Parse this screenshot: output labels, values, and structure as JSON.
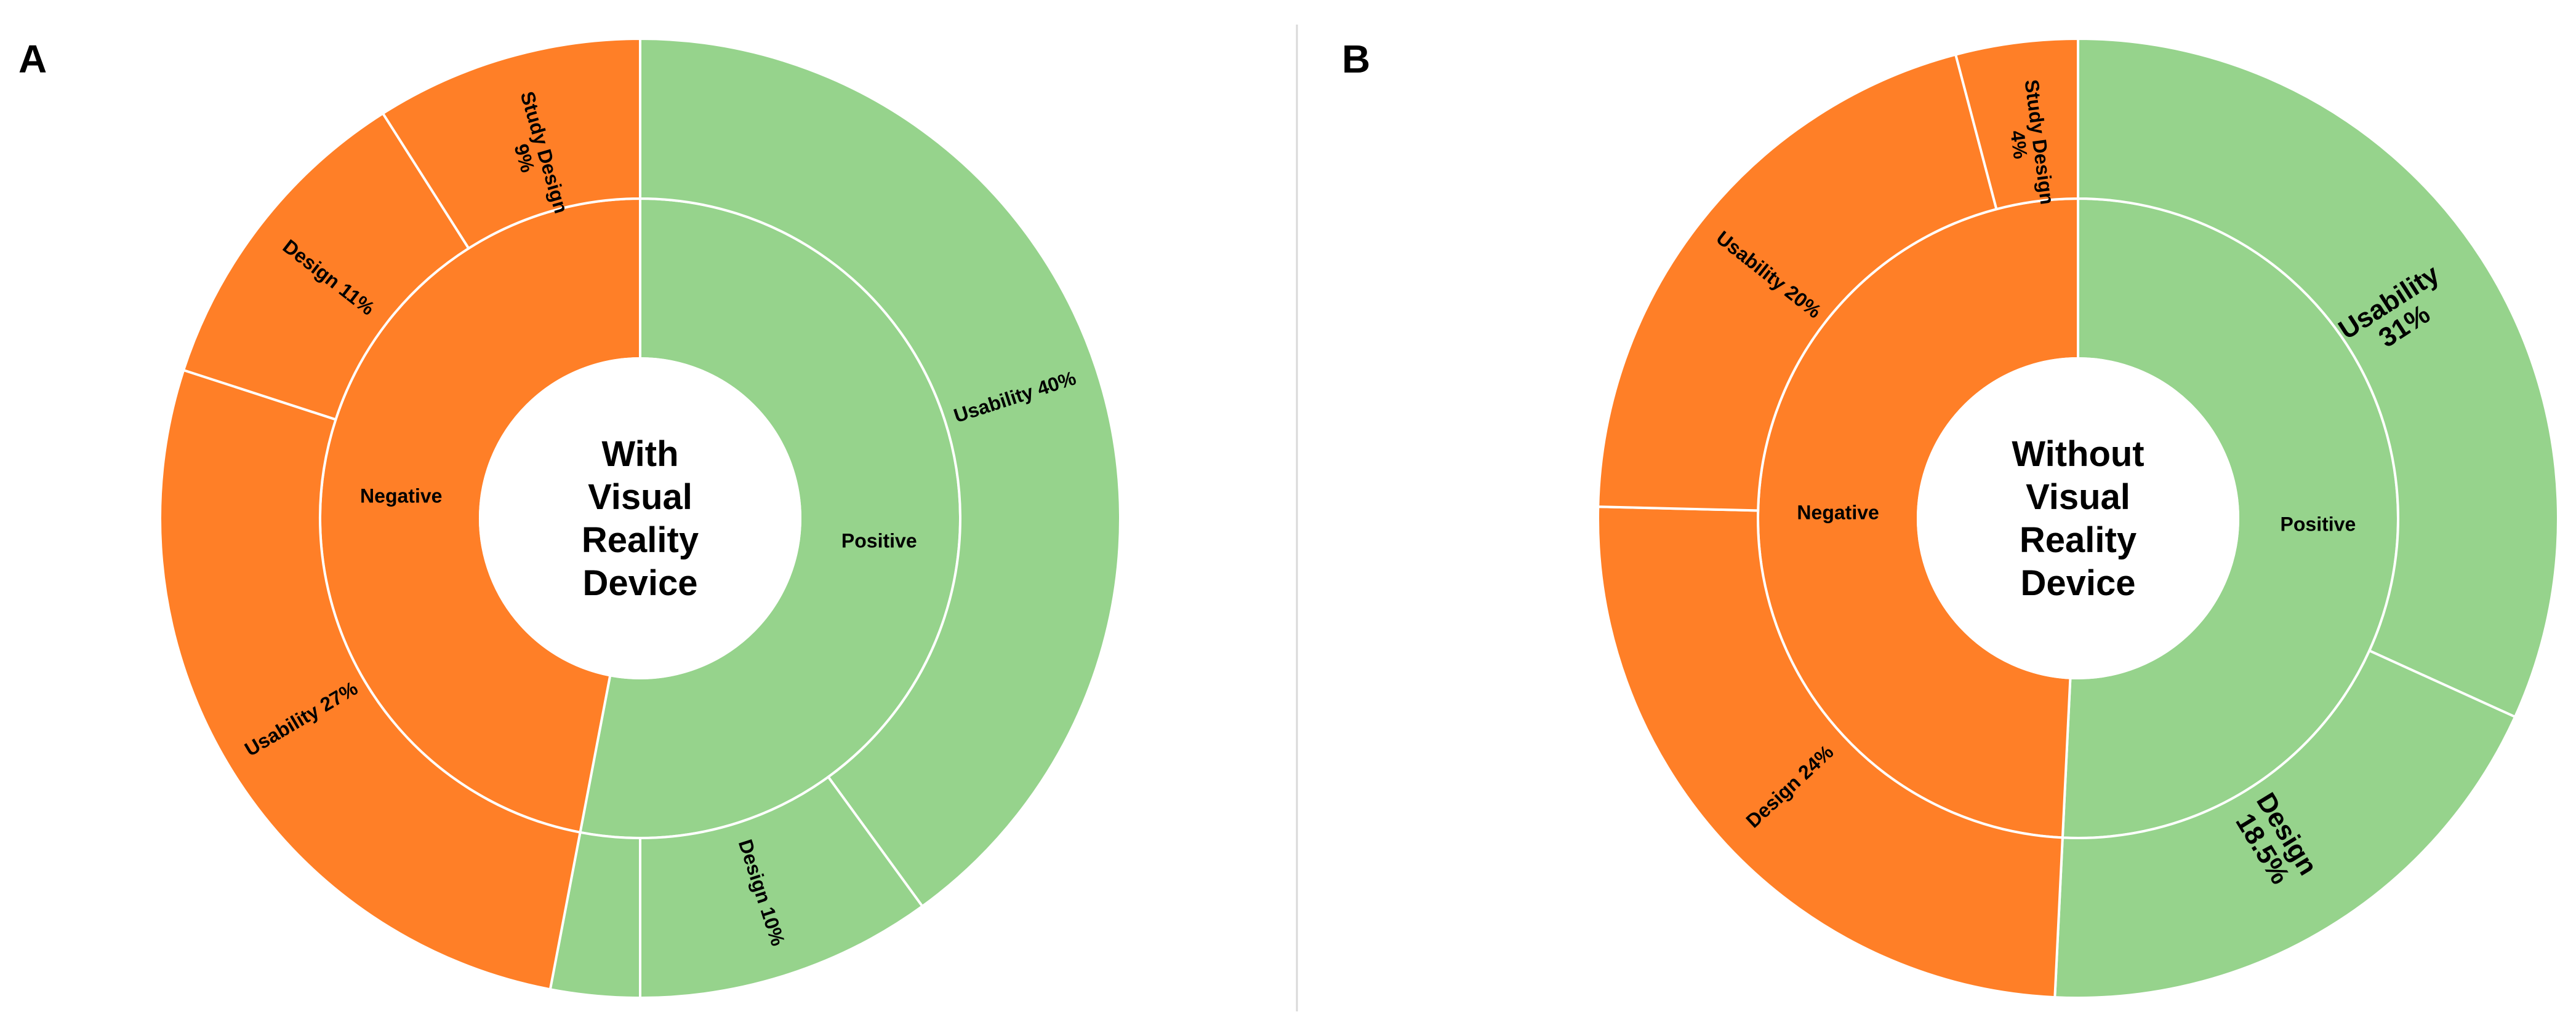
{
  "chart_data": [
    {
      "type": "sunburst",
      "panel_label": "A",
      "center_lines": [
        "With",
        "Visual",
        "Reality",
        "Device"
      ],
      "colors": {
        "Positive": "#96d38c",
        "Negative": "#ff7f27"
      },
      "inner": [
        {
          "name": "Positive",
          "value": 53
        },
        {
          "name": "Negative",
          "value": 47
        }
      ],
      "outer": [
        {
          "parent": "Positive",
          "label": "Usability 40%",
          "value": 40
        },
        {
          "parent": "Positive",
          "label": "Design 10%",
          "value": 10
        },
        {
          "parent": "Positive",
          "label": "",
          "value": 3
        },
        {
          "parent": "Negative",
          "label": "Usability 27%",
          "value": 27
        },
        {
          "parent": "Negative",
          "label": "Design 11%",
          "value": 11
        },
        {
          "parent": "Negative",
          "label": "Study Design 9%",
          "value": 9
        }
      ]
    },
    {
      "type": "sunburst",
      "panel_label": "B",
      "center_lines": [
        "Without",
        "Visual",
        "Reality",
        "Device"
      ],
      "colors": {
        "Positive": "#96d38c",
        "Negative": "#ff7f27"
      },
      "inner": [
        {
          "name": "Positive",
          "value": 49.5
        },
        {
          "name": "Negative",
          "value": 48
        }
      ],
      "outer": [
        {
          "parent": "Positive",
          "label": "Usability 31%",
          "value": 31
        },
        {
          "parent": "Positive",
          "label": "Design 18.5%",
          "value": 18.5
        },
        {
          "parent": "Negative",
          "label": "Design 24%",
          "value": 24
        },
        {
          "parent": "Negative",
          "label": "Usability 20%",
          "value": 20
        },
        {
          "parent": "Negative",
          "label": "Study Design 4%",
          "value": 4
        }
      ]
    }
  ]
}
